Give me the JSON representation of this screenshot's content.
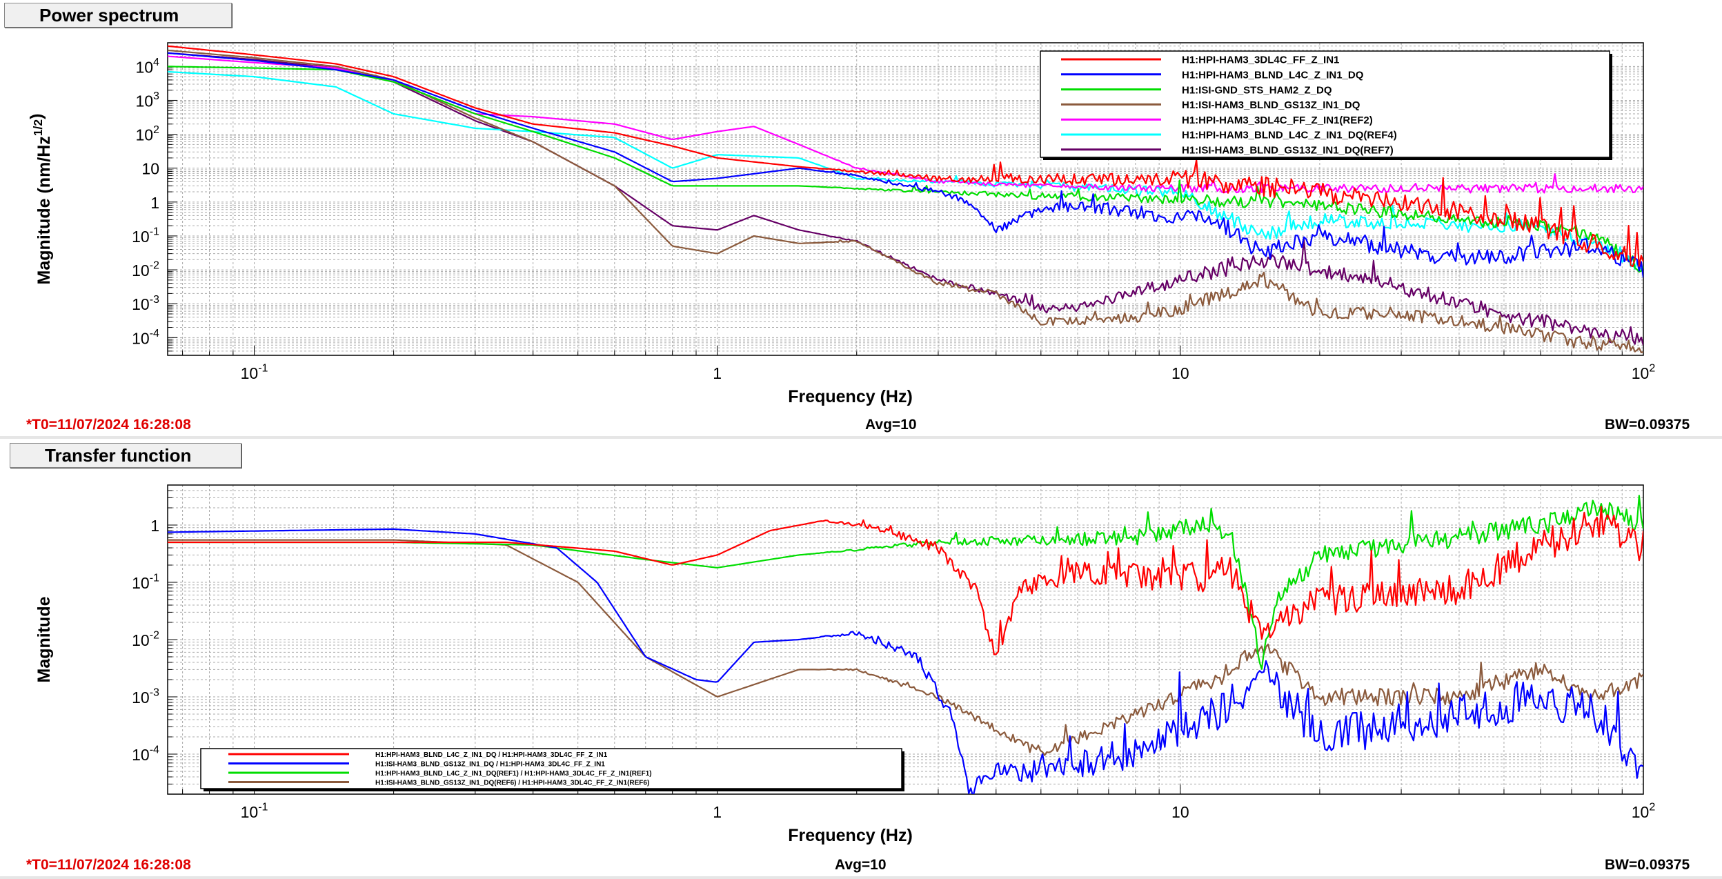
{
  "panels": [
    {
      "title": "Power spectrum",
      "t0": "*T0=11/07/2024 16:28:08",
      "avg": "Avg=10",
      "bw": "BW=0.09375"
    },
    {
      "title": "Transfer function",
      "t0": "*T0=11/07/2024 16:28:08",
      "avg": "Avg=10",
      "bw": "BW=0.09375"
    }
  ],
  "chart_data": [
    {
      "type": "line",
      "title": "Power spectrum",
      "xlabel": "Frequency (Hz)",
      "ylabel": "Magnitude (nm/Hz^{1/2})",
      "x_scale": "log",
      "y_scale": "log",
      "xlim": [
        0.065,
        100
      ],
      "ylim": [
        3e-05,
        50000
      ],
      "x_ticks": [
        "10^{-1}",
        "1",
        "10",
        "10^{2}"
      ],
      "y_ticks": [
        "10^{4}",
        "10^{3}",
        "10^{2}",
        "10",
        "1",
        "10^{-1}",
        "10^{-2}",
        "10^{-3}",
        "10^{-4}"
      ],
      "grid": true,
      "legend_position": "top-right",
      "series": [
        {
          "name": "H1:HPI-HAM3_3DL4C_FF_Z_IN1",
          "color": "#ff0000",
          "noise": 0.6,
          "points": [
            [
              0.065,
              40000
            ],
            [
              0.1,
              22000
            ],
            [
              0.15,
              12000
            ],
            [
              0.2,
              5000
            ],
            [
              0.3,
              600
            ],
            [
              0.4,
              200
            ],
            [
              0.6,
              110
            ],
            [
              0.8,
              45
            ],
            [
              1,
              20
            ],
            [
              1.5,
              11
            ],
            [
              2,
              8
            ],
            [
              3,
              5
            ],
            [
              5,
              5
            ],
            [
              10,
              5
            ],
            [
              20,
              2
            ],
            [
              40,
              0.5
            ],
            [
              60,
              0.2
            ],
            [
              80,
              0.05
            ],
            [
              100,
              0.02
            ]
          ]
        },
        {
          "name": "H1:HPI-HAM3_BLND_L4C_Z_IN1_DQ",
          "color": "#0000ff",
          "noise": 0.5,
          "points": [
            [
              0.065,
              25000
            ],
            [
              0.1,
              15000
            ],
            [
              0.15,
              8000
            ],
            [
              0.2,
              4000
            ],
            [
              0.3,
              500
            ],
            [
              0.4,
              150
            ],
            [
              0.6,
              30
            ],
            [
              0.8,
              4
            ],
            [
              1,
              5
            ],
            [
              1.5,
              10
            ],
            [
              2,
              6
            ],
            [
              3,
              2
            ],
            [
              3.5,
              1
            ],
            [
              4,
              0.15
            ],
            [
              5,
              0.6
            ],
            [
              6,
              0.8
            ],
            [
              8,
              0.5
            ],
            [
              12,
              0.3
            ],
            [
              15,
              0.03
            ],
            [
              20,
              0.1
            ],
            [
              40,
              0.02
            ],
            [
              80,
              0.05
            ],
            [
              100,
              0.01
            ]
          ]
        },
        {
          "name": "H1:ISI-GND_STS_HAM2_Z_DQ",
          "color": "#00dd00",
          "noise": 0.35,
          "points": [
            [
              0.065,
              10000
            ],
            [
              0.1,
              9000
            ],
            [
              0.15,
              8000
            ],
            [
              0.2,
              3500
            ],
            [
              0.3,
              400
            ],
            [
              0.4,
              120
            ],
            [
              0.6,
              20
            ],
            [
              0.8,
              3
            ],
            [
              1,
              3
            ],
            [
              1.5,
              3
            ],
            [
              2,
              2.5
            ],
            [
              3,
              2
            ],
            [
              5,
              1.5
            ],
            [
              10,
              1.2
            ],
            [
              15,
              1
            ],
            [
              20,
              0.8
            ],
            [
              40,
              0.3
            ],
            [
              60,
              0.2
            ],
            [
              80,
              0.1
            ],
            [
              100,
              0.01
            ]
          ]
        },
        {
          "name": "H1:ISI-HAM3_BLND_GS13Z_IN1_DQ",
          "color": "#8b5a3c",
          "noise": 0.4,
          "points": [
            [
              0.065,
              30000
            ],
            [
              0.1,
              18000
            ],
            [
              0.15,
              10000
            ],
            [
              0.2,
              4000
            ],
            [
              0.3,
              300
            ],
            [
              0.4,
              60
            ],
            [
              0.6,
              3
            ],
            [
              0.8,
              0.05
            ],
            [
              1,
              0.03
            ],
            [
              1.2,
              0.1
            ],
            [
              1.5,
              0.06
            ],
            [
              2,
              0.07
            ],
            [
              3,
              0.004
            ],
            [
              4,
              0.002
            ],
            [
              5,
              0.0003
            ],
            [
              6,
              0.0003
            ],
            [
              8,
              0.0004
            ],
            [
              10,
              0.0007
            ],
            [
              15,
              0.005
            ],
            [
              20,
              0.0005
            ],
            [
              30,
              0.0005
            ],
            [
              50,
              0.0002
            ],
            [
              70,
              8e-05
            ],
            [
              100,
              5e-05
            ]
          ]
        },
        {
          "name": "H1:HPI-HAM3_3DL4C_FF_Z_IN1(REF2)",
          "color": "#ff00ff",
          "noise": 0.25,
          "points": [
            [
              0.065,
              20000
            ],
            [
              0.1,
              13000
            ],
            [
              0.15,
              9000
            ],
            [
              0.2,
              3500
            ],
            [
              0.3,
              400
            ],
            [
              0.4,
              330
            ],
            [
              0.6,
              200
            ],
            [
              0.8,
              70
            ],
            [
              1,
              120
            ],
            [
              1.2,
              170
            ],
            [
              1.5,
              50
            ],
            [
              2,
              10
            ],
            [
              3,
              4
            ],
            [
              5,
              3
            ],
            [
              10,
              2.5
            ]
          ]
        },
        {
          "name": "H1:HPI-HAM3_BLND_L4C_Z_IN1_DQ(REF4)",
          "color": "#00ffff",
          "noise": 0.4,
          "points": [
            [
              0.065,
              7000
            ],
            [
              0.1,
              5000
            ],
            [
              0.15,
              2500
            ],
            [
              0.2,
              400
            ],
            [
              0.3,
              150
            ],
            [
              0.4,
              120
            ],
            [
              0.6,
              80
            ],
            [
              0.8,
              10
            ],
            [
              1,
              25
            ],
            [
              1.5,
              20
            ],
            [
              2,
              5
            ],
            [
              3,
              4
            ],
            [
              5,
              3
            ],
            [
              10,
              2
            ],
            [
              15,
              0.1
            ],
            [
              20,
              0.3
            ],
            [
              40,
              0.2
            ],
            [
              60,
              0.2
            ],
            [
              80,
              0.05
            ],
            [
              100,
              0.01
            ]
          ]
        },
        {
          "name": "H1:ISI-HAM3_BLND_GS13Z_IN1_DQ(REF7)",
          "color": "#660066",
          "noise": 0.45,
          "points": [
            [
              0.065,
              25000
            ],
            [
              0.1,
              16000
            ],
            [
              0.15,
              9000
            ],
            [
              0.2,
              3500
            ],
            [
              0.3,
              250
            ],
            [
              0.4,
              60
            ],
            [
              0.6,
              3
            ],
            [
              0.8,
              0.2
            ],
            [
              1,
              0.15
            ],
            [
              1.2,
              0.4
            ],
            [
              1.5,
              0.15
            ],
            [
              2,
              0.07
            ],
            [
              3,
              0.005
            ],
            [
              4,
              0.002
            ],
            [
              5,
              0.0007
            ],
            [
              6,
              0.0008
            ],
            [
              10,
              0.005
            ],
            [
              15,
              0.02
            ],
            [
              20,
              0.01
            ],
            [
              30,
              0.003
            ],
            [
              50,
              0.0005
            ],
            [
              70,
              0.0002
            ],
            [
              100,
              8e-05
            ]
          ]
        }
      ]
    },
    {
      "type": "line",
      "title": "Transfer function",
      "xlabel": "Frequency (Hz)",
      "ylabel": "Magnitude",
      "x_scale": "log",
      "y_scale": "log",
      "xlim": [
        0.065,
        100
      ],
      "ylim": [
        2e-05,
        5
      ],
      "x_ticks": [
        "10^{-1}",
        "1",
        "10",
        "10^{2}"
      ],
      "y_ticks": [
        "1",
        "10^{-1}",
        "10^{-2}",
        "10^{-3}",
        "10^{-4}"
      ],
      "grid": true,
      "legend_position": "bottom-left",
      "series": [
        {
          "name": "H1:HPI-HAM3_BLND_L4C_Z_IN1_DQ / H1:HPI-HAM3_3DL4C_FF_Z_IN1",
          "color": "#ff0000",
          "noise": 0.6,
          "points": [
            [
              0.065,
              0.5
            ],
            [
              0.2,
              0.5
            ],
            [
              0.35,
              0.5
            ],
            [
              0.6,
              0.35
            ],
            [
              0.8,
              0.2
            ],
            [
              1,
              0.3
            ],
            [
              1.3,
              0.8
            ],
            [
              1.7,
              1.2
            ],
            [
              2.2,
              0.9
            ],
            [
              3,
              0.4
            ],
            [
              3.6,
              0.08
            ],
            [
              4,
              0.005
            ],
            [
              4.5,
              0.08
            ],
            [
              6,
              0.15
            ],
            [
              10,
              0.12
            ],
            [
              13,
              0.15
            ],
            [
              15,
              0.01
            ],
            [
              20,
              0.05
            ],
            [
              40,
              0.08
            ],
            [
              60,
              0.4
            ],
            [
              80,
              1.2
            ],
            [
              100,
              0.4
            ]
          ]
        },
        {
          "name": "H1:ISI-HAM3_BLND_GS13Z_IN1_DQ / H1:HPI-HAM3_3DL4C_FF_Z_IN1",
          "color": "#0000ff",
          "noise": 0.7,
          "points": [
            [
              0.065,
              0.75
            ],
            [
              0.2,
              0.85
            ],
            [
              0.3,
              0.7
            ],
            [
              0.45,
              0.4
            ],
            [
              0.55,
              0.1
            ],
            [
              0.7,
              0.005
            ],
            [
              0.9,
              0.002
            ],
            [
              1,
              0.0018
            ],
            [
              1.2,
              0.009
            ],
            [
              1.5,
              0.01
            ],
            [
              2,
              0.013
            ],
            [
              2.7,
              0.005
            ],
            [
              3.2,
              0.0005
            ],
            [
              3.5,
              2e-05
            ],
            [
              3.8,
              5e-05
            ],
            [
              5,
              5e-05
            ],
            [
              8,
              0.0001
            ],
            [
              12,
              0.0005
            ],
            [
              15,
              0.003
            ],
            [
              20,
              0.0002
            ],
            [
              40,
              0.0005
            ],
            [
              60,
              0.001
            ],
            [
              80,
              0.0005
            ],
            [
              100,
              5e-05
            ]
          ]
        },
        {
          "name": "H1:HPI-HAM3_BLND_L4C_Z_IN1_DQ(REF1) / H1:HPI-HAM3_3DL4C_FF_Z_IN1(REF1)",
          "color": "#00dd00",
          "noise": 0.35,
          "points": [
            [
              0.065,
              0.5
            ],
            [
              0.2,
              0.5
            ],
            [
              0.4,
              0.45
            ],
            [
              0.7,
              0.25
            ],
            [
              1,
              0.18
            ],
            [
              1.5,
              0.3
            ],
            [
              3,
              0.5
            ],
            [
              8,
              0.6
            ],
            [
              12,
              1.1
            ],
            [
              13,
              0.5
            ],
            [
              14,
              0.05
            ],
            [
              15,
              0.003
            ],
            [
              16,
              0.05
            ],
            [
              20,
              0.3
            ],
            [
              40,
              0.6
            ],
            [
              60,
              1
            ],
            [
              80,
              2
            ],
            [
              100,
              1
            ]
          ]
        },
        {
          "name": "H1:ISI-HAM3_BLND_GS13Z_IN1_DQ(REF6) / H1:HPI-HAM3_3DL4C_FF_Z_IN1(REF6)",
          "color": "#8b5a3c",
          "noise": 0.3,
          "points": [
            [
              0.065,
              0.55
            ],
            [
              0.2,
              0.55
            ],
            [
              0.35,
              0.45
            ],
            [
              0.5,
              0.1
            ],
            [
              0.7,
              0.005
            ],
            [
              1,
              0.001
            ],
            [
              1.5,
              0.003
            ],
            [
              2,
              0.003
            ],
            [
              3,
              0.001
            ],
            [
              5,
              0.0001
            ],
            [
              8,
              0.0005
            ],
            [
              12,
              0.002
            ],
            [
              15,
              0.008
            ],
            [
              20,
              0.001
            ],
            [
              40,
              0.001
            ],
            [
              60,
              0.003
            ],
            [
              80,
              0.001
            ],
            [
              100,
              0.002
            ]
          ]
        }
      ]
    }
  ]
}
